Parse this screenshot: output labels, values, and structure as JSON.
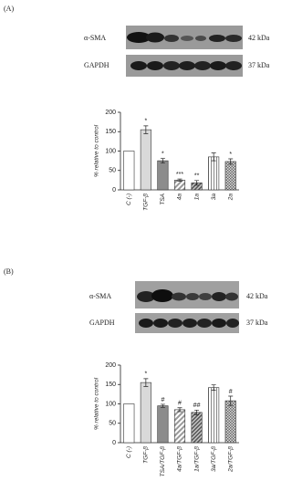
{
  "panels": [
    {
      "label": "(A)",
      "blots": [
        {
          "name": "α-SMA",
          "size": "42 kDa"
        },
        {
          "name": "GAPDH",
          "size": "37 kDa"
        }
      ]
    },
    {
      "label": "(B)",
      "blots": [
        {
          "name": "α-SMA",
          "size": "42 kDa"
        },
        {
          "name": "GAPDH",
          "size": "37 kDa"
        }
      ]
    }
  ],
  "chart_data": [
    {
      "type": "bar",
      "ylabel": "% relative to control",
      "categories": [
        "C (-)",
        "TGF-β",
        "TSA",
        "4a",
        "1a",
        "3a",
        "2a"
      ],
      "values": [
        100,
        155,
        75,
        25,
        18,
        85,
        73
      ],
      "errors": [
        0,
        10,
        6,
        3,
        6,
        10,
        7
      ],
      "annotations": [
        null,
        "*",
        "*",
        "***",
        "**",
        null,
        "*"
      ],
      "fills": [
        "#ffffff",
        "#d9d9d9",
        "#8c8c8c",
        "diag",
        "diagdense",
        "vertical",
        "check"
      ],
      "ylim": [
        0,
        200
      ],
      "yticks": [
        0,
        50,
        100,
        150,
        200
      ]
    },
    {
      "type": "bar",
      "ylabel": "% relative to control",
      "categories": [
        "C (-)",
        "TGF-β",
        "TSA/TGF-β",
        "4a/TGF-β",
        "1a/TGF-β",
        "3a/TGF-β",
        "2a/TGF-β"
      ],
      "values": [
        100,
        155,
        95,
        85,
        78,
        142,
        108
      ],
      "errors": [
        0,
        10,
        4,
        5,
        6,
        7,
        12
      ],
      "annotations": [
        null,
        "*",
        "#",
        "#",
        "##",
        null,
        "#"
      ],
      "fills": [
        "#ffffff",
        "#d9d9d9",
        "#8c8c8c",
        "diag",
        "diagdense",
        "vertical",
        "check"
      ],
      "ylim": [
        0,
        200
      ],
      "yticks": [
        0,
        50,
        100,
        150,
        200
      ]
    }
  ]
}
